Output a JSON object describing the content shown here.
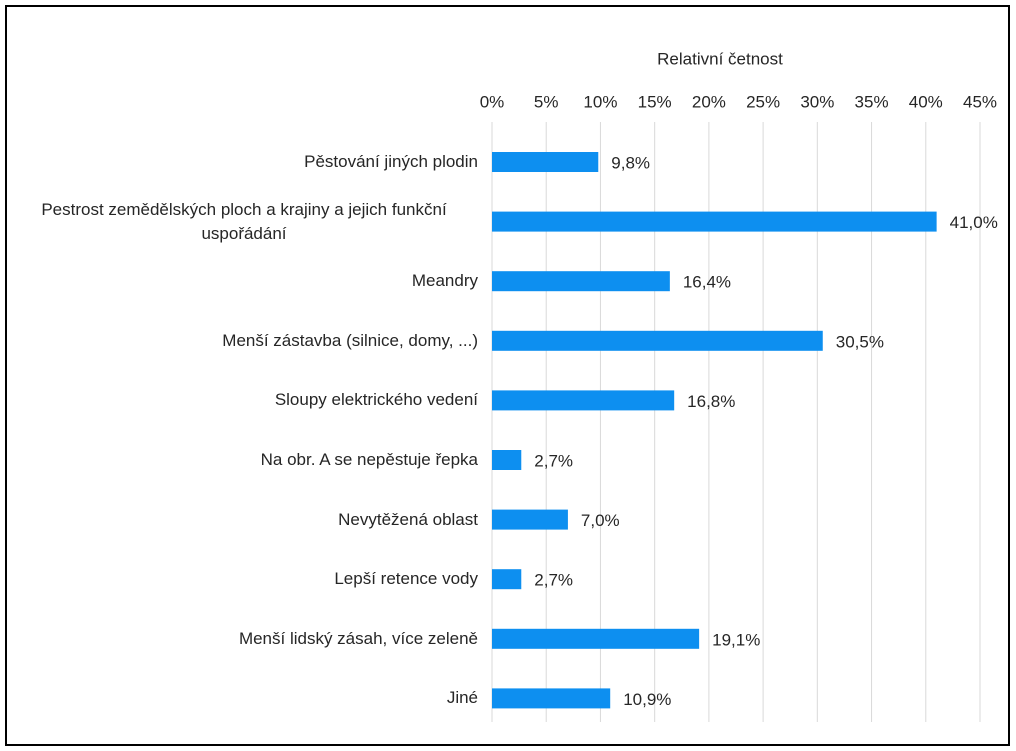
{
  "chart_data": {
    "type": "bar",
    "orientation": "horizontal",
    "x_label": "Relativní četnost",
    "categories": [
      "Pěstování jiných plodin",
      "Pestrost zemědělských ploch a krajiny a jejich funkční uspořádání",
      "Meandry",
      "Menší zástavba (silnice, domy, ...)",
      "Sloupy elektrického vedení",
      "Na obr. A se nepěstuje řepka",
      "Nevytěžená oblast",
      "Lepší retence vody",
      "Menší lidský zásah, více zeleně",
      "Jiné"
    ],
    "values": [
      9.8,
      41.0,
      16.4,
      30.5,
      16.8,
      2.7,
      7.0,
      2.7,
      19.1,
      10.9
    ],
    "value_labels": [
      "9,8%",
      "41,0%",
      "16,4%",
      "30,5%",
      "16,8%",
      "2,7%",
      "7,0%",
      "2,7%",
      "19,1%",
      "10,9%"
    ],
    "color": "#0d8ff0",
    "xlim": [
      0,
      45
    ],
    "xticks": [
      {
        "value": 0,
        "label": "0%"
      },
      {
        "value": 5,
        "label": "5%"
      },
      {
        "value": 10,
        "label": "10%"
      },
      {
        "value": 15,
        "label": "15%"
      },
      {
        "value": 20,
        "label": "20%"
      },
      {
        "value": 25,
        "label": "25%"
      },
      {
        "value": 30,
        "label": "30%"
      },
      {
        "value": 35,
        "label": "35%"
      },
      {
        "value": 40,
        "label": "40%"
      },
      {
        "value": 45,
        "label": "45%"
      }
    ],
    "grid": true
  }
}
